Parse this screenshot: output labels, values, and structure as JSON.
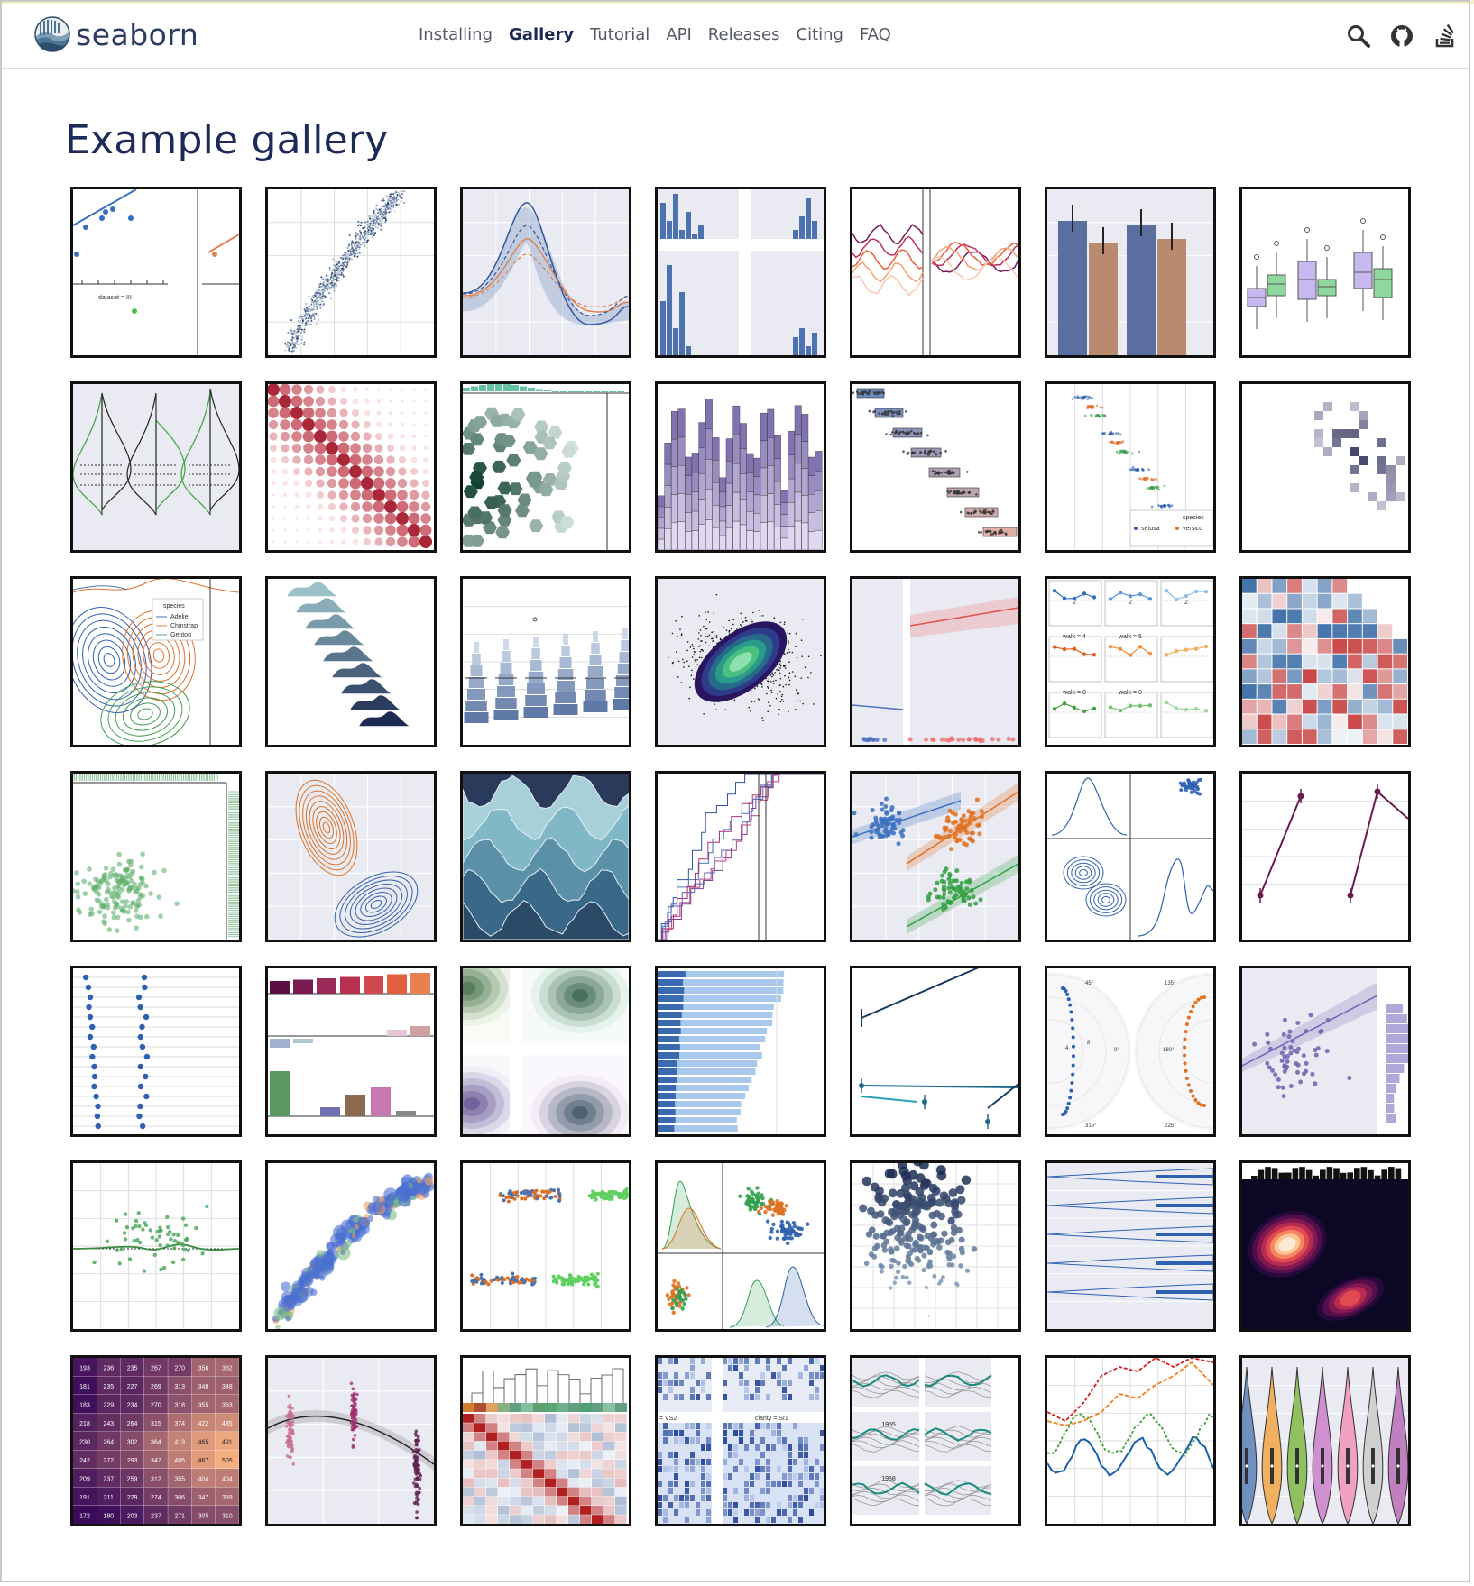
{
  "header": {
    "brand": "seaborn",
    "nav": [
      {
        "label": "Installing",
        "active": false
      },
      {
        "label": "Gallery",
        "active": true
      },
      {
        "label": "Tutorial",
        "active": false
      },
      {
        "label": "API",
        "active": false
      },
      {
        "label": "Releases",
        "active": false
      },
      {
        "label": "Citing",
        "active": false
      },
      {
        "label": "FAQ",
        "active": false
      }
    ],
    "icons": [
      "search-icon",
      "github-icon",
      "stack-overflow-icon"
    ]
  },
  "page": {
    "title": "Example gallery"
  },
  "gallery": [
    {
      "name": "anscombes-quartet-thumb",
      "labels": [
        "dataset = III"
      ]
    },
    {
      "name": "different-scatter-variables-thumb",
      "labels": []
    },
    {
      "name": "errorband-lineplots-thumb",
      "labels": []
    },
    {
      "name": "faceted-histogram-thumb",
      "labels": []
    },
    {
      "name": "faceted-lineplot-thumb",
      "labels": []
    },
    {
      "name": "grouped-barplot-thumb",
      "labels": []
    },
    {
      "name": "grouped-boxplot-thumb",
      "labels": []
    },
    {
      "name": "grouped-violinplots-thumb",
      "labels": []
    },
    {
      "name": "heat-scatter-thumb",
      "labels": []
    },
    {
      "name": "hexbin-marginals-thumb",
      "labels": []
    },
    {
      "name": "histogram-stacked-thumb",
      "labels": []
    },
    {
      "name": "horizontal-boxplot-thumb",
      "labels": []
    },
    {
      "name": "jitter-stripplot-thumb",
      "labels": [
        "species",
        "setosa",
        "versico"
      ]
    },
    {
      "name": "joint-histogram-thumb",
      "labels": []
    },
    {
      "name": "joint-kde-thumb",
      "labels": [
        "species",
        "Adelie",
        "Chinstrap",
        "Gentoo"
      ]
    },
    {
      "name": "kde-ridgeplot-thumb",
      "labels": []
    },
    {
      "name": "large-distributions-thumb",
      "labels": []
    },
    {
      "name": "layered-bivariate-plot-thumb",
      "labels": []
    },
    {
      "name": "logistic-regression-thumb",
      "labels": []
    },
    {
      "name": "many-facets-thumb",
      "labels": [
        "walk = 4",
        "walk = 5",
        "walk = 8",
        "walk = 9",
        "2",
        "2",
        "2"
      ]
    },
    {
      "name": "many-pairwise-correlations-thumb",
      "labels": []
    },
    {
      "name": "marginal-ticks-thumb",
      "labels": []
    },
    {
      "name": "multiple-bivariate-kde-thumb",
      "labels": []
    },
    {
      "name": "multiple-conditional-kde-thumb",
      "labels": []
    },
    {
      "name": "multiple-ecdf-thumb",
      "labels": []
    },
    {
      "name": "multiple-regression-thumb",
      "labels": []
    },
    {
      "name": "pair-grid-with-kde-thumb",
      "labels": []
    },
    {
      "name": "paired-pointplots-thumb",
      "labels": []
    },
    {
      "name": "pairgrid-dotplot-thumb",
      "labels": []
    },
    {
      "name": "palette-choices-thumb",
      "labels": []
    },
    {
      "name": "palette-generation-thumb",
      "labels": []
    },
    {
      "name": "part-whole-bars-thumb",
      "labels": []
    },
    {
      "name": "pointplot-anova-thumb",
      "labels": []
    },
    {
      "name": "radial-facets-thumb",
      "labels": [
        "45°",
        "135°",
        "0°",
        "180°",
        "315°",
        "225°",
        "4",
        "8"
      ]
    },
    {
      "name": "regression-marginals-thumb",
      "labels": []
    },
    {
      "name": "residplot-thumb",
      "labels": []
    },
    {
      "name": "scatter-bubbles-thumb",
      "labels": []
    },
    {
      "name": "scatterplot-categorical-thumb",
      "labels": []
    },
    {
      "name": "scatterplot-matrix-thumb",
      "labels": []
    },
    {
      "name": "scatterplot-sizes-thumb",
      "labels": []
    },
    {
      "name": "simple-violinplots-thumb",
      "labels": []
    },
    {
      "name": "smooth-bivariate-kde-thumb",
      "labels": []
    },
    {
      "name": "spreadsheet-heatmap-thumb",
      "labels": [
        "193",
        "236",
        "235",
        "267",
        "270",
        "356",
        "362",
        "181",
        "235",
        "227",
        "269",
        "313",
        "348",
        "348",
        "183",
        "229",
        "234",
        "270",
        "318",
        "355",
        "363",
        "218",
        "243",
        "264",
        "315",
        "374",
        "422",
        "435",
        "230",
        "264",
        "302",
        "364",
        "413",
        "465",
        "491",
        "242",
        "272",
        "293",
        "347",
        "405",
        "467",
        "505",
        "209",
        "237",
        "259",
        "312",
        "355",
        "404",
        "404",
        "191",
        "211",
        "229",
        "274",
        "306",
        "347",
        "359",
        "172",
        "180",
        "203",
        "237",
        "271",
        "305",
        "310"
      ]
    },
    {
      "name": "strip-regplot-thumb",
      "labels": []
    },
    {
      "name": "structured-heatmap-thumb",
      "labels": []
    },
    {
      "name": "three-variable-histogram-thumb",
      "labels": [
        "= VS2",
        "clarity = SI1"
      ]
    },
    {
      "name": "timeseries-facets-thumb",
      "labels": [
        "1955",
        "1958"
      ]
    },
    {
      "name": "wide-data-lineplot-thumb",
      "labels": []
    },
    {
      "name": "wide-form-violinplot-thumb",
      "labels": []
    }
  ],
  "colors": {
    "nav_active": "#1b2a55",
    "nav": "#555a66",
    "title": "#1d2a5a",
    "thumb_border": "#111111"
  }
}
